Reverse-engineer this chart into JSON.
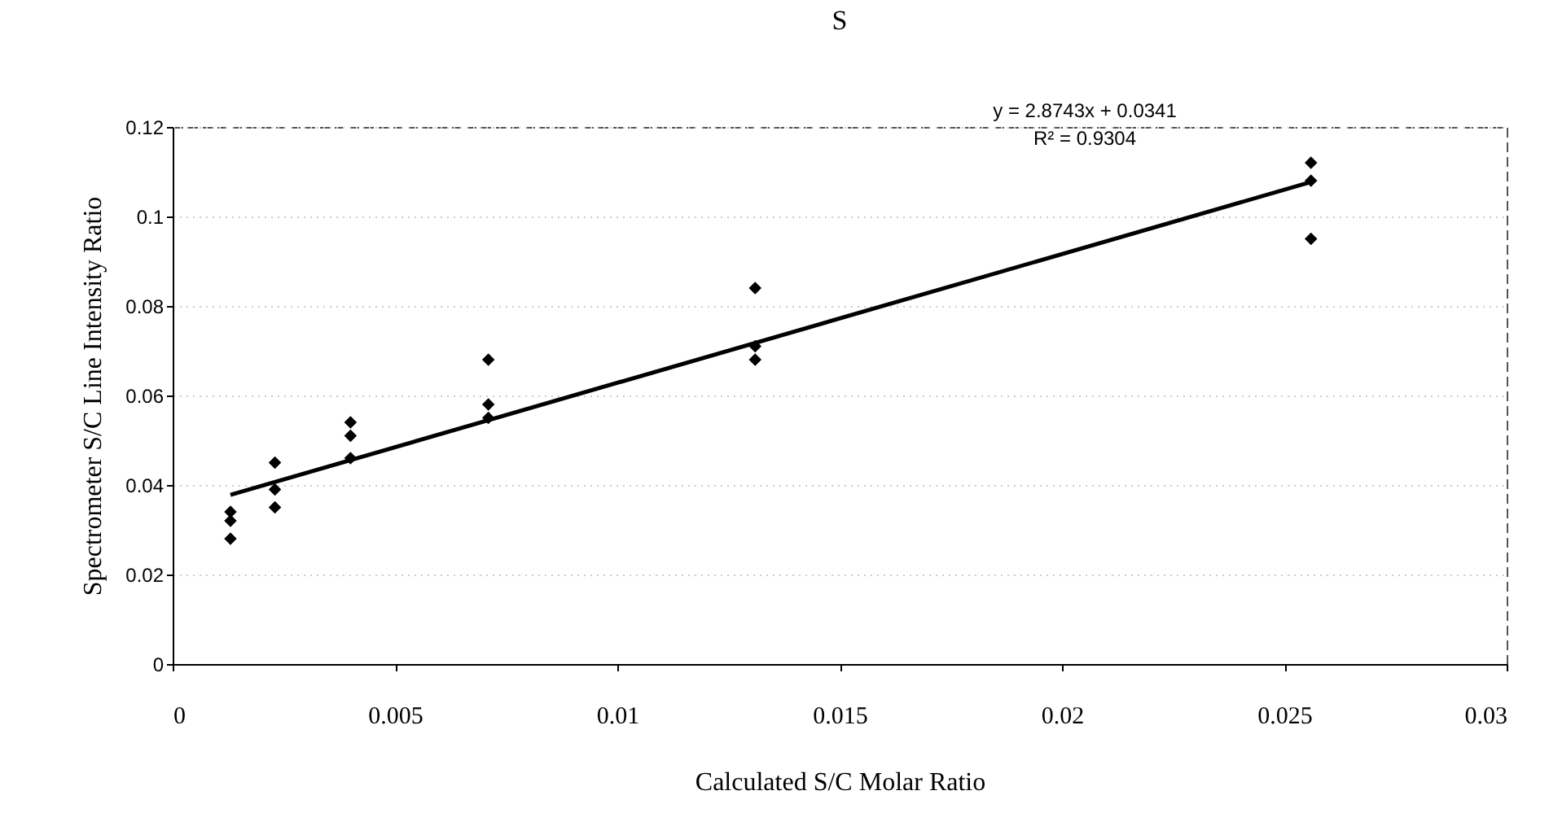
{
  "chart_data": {
    "type": "scatter",
    "title": "S",
    "xlabel": "Calculated S/C Molar Ratio",
    "ylabel": "Spectrometer S/C Line Intensity Ratio",
    "annotations": [
      "y = 2.8743x + 0.0341",
      "R² = 0.9304"
    ],
    "series": [
      {
        "color": "#000000",
        "marker": "diamond",
        "x": [
          0.0013,
          0.0013,
          0.0013,
          0.0023,
          0.0023,
          0.0023,
          0.004,
          0.004,
          0.004,
          0.0071,
          0.0071,
          0.0071,
          0.0131,
          0.0131,
          0.0131,
          0.0256,
          0.0256,
          0.0256
        ],
        "values": [
          0.034,
          0.032,
          0.028,
          0.045,
          0.039,
          0.035,
          0.054,
          0.051,
          0.046,
          0.068,
          0.058,
          0.055,
          0.084,
          0.071,
          0.068,
          0.112,
          0.108,
          0.095
        ]
      },
      {
        "type": "line",
        "color": "#000000",
        "marker": "none",
        "line_style": "solid",
        "x": [
          0.0013,
          0.0256
        ],
        "values": [
          0.0378,
          0.1077
        ]
      }
    ],
    "xlim": [
      0,
      0.03
    ],
    "xticks": [
      0,
      0.005,
      0.01,
      0.015,
      0.02,
      0.025,
      0.03
    ],
    "ylim": [
      0,
      0.12
    ],
    "yticks": [
      0,
      0.02,
      0.04,
      0.06,
      0.08,
      0.1,
      0.12
    ],
    "grid": "y"
  }
}
